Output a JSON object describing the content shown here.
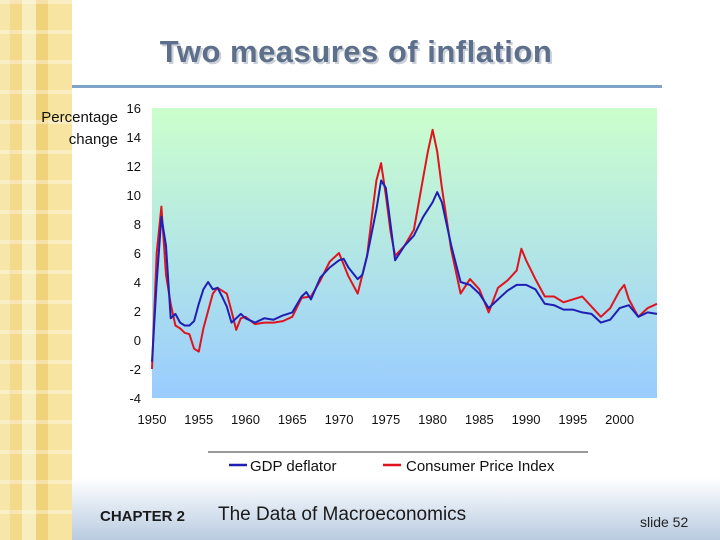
{
  "slide": {
    "title": "Two measures of inflation",
    "chapter": "CHAPTER 2",
    "subject": "The Data of Macroeconomics",
    "slide_number": "slide 52"
  },
  "colors": {
    "gdp_deflator": "#1f1fb4",
    "cpi": "#e0141e",
    "background_top": "#ccffcc",
    "background_bottom": "#99ccff",
    "title": "#5d6f8a",
    "accent_rule": "#7ea2c8"
  },
  "chart_data": {
    "type": "line",
    "title": "",
    "ylabel_lines": [
      "Percentage",
      "change"
    ],
    "xlabel": "",
    "xlim": [
      1950,
      2004
    ],
    "ylim": [
      -4,
      16
    ],
    "x_ticks": [
      1950,
      1955,
      1960,
      1965,
      1970,
      1975,
      1980,
      1985,
      1990,
      1995,
      2000
    ],
    "x_tick_labels": [
      "1950",
      "1955",
      "1960",
      "1965",
      "1970",
      "1975",
      "1980",
      "1985",
      "1990",
      "1995",
      "2000"
    ],
    "y_ticks": [
      -4,
      -2,
      0,
      2,
      4,
      6,
      8,
      10,
      12,
      14,
      16
    ],
    "y_tick_labels": [
      "-4",
      "-2",
      "0",
      "2",
      "4",
      "6",
      "8",
      "10",
      "12",
      "14",
      "16"
    ],
    "legend_position": "bottom",
    "grid": false,
    "series": [
      {
        "name": "GDP deflator",
        "color": "#1f1fb4",
        "x": [
          1950,
          1950.5,
          1951,
          1951.5,
          1952,
          1952.5,
          1953,
          1953.5,
          1954,
          1954.5,
          1955,
          1955.5,
          1956,
          1956.5,
          1957,
          1957.5,
          1958,
          1958.5,
          1959,
          1959.5,
          1960,
          1961,
          1962,
          1963,
          1964,
          1965,
          1966,
          1966.5,
          1967,
          1968,
          1969,
          1970,
          1970.5,
          1971,
          1972,
          1972.5,
          1973,
          1974,
          1974.5,
          1975,
          1975.5,
          1976,
          1977,
          1978,
          1979,
          1980,
          1980.5,
          1981,
          1982,
          1983,
          1984,
          1985,
          1986,
          1987,
          1988,
          1989,
          1990,
          1991,
          1992,
          1993,
          1994,
          1995,
          1996,
          1997,
          1998,
          1999,
          2000,
          2001,
          2002,
          2003,
          2004
        ],
        "values": [
          -1.5,
          4.0,
          8.5,
          6.5,
          1.5,
          1.8,
          1.2,
          1.0,
          1.0,
          1.3,
          2.5,
          3.5,
          4.0,
          3.5,
          3.6,
          3.0,
          2.3,
          1.2,
          1.5,
          1.8,
          1.5,
          1.2,
          1.5,
          1.4,
          1.7,
          1.9,
          3.0,
          3.3,
          2.8,
          4.3,
          5.0,
          5.5,
          5.6,
          5.0,
          4.2,
          4.5,
          5.8,
          9.0,
          11.0,
          10.5,
          8.0,
          5.5,
          6.5,
          7.2,
          8.5,
          9.5,
          10.2,
          9.5,
          6.5,
          4.0,
          3.8,
          3.2,
          2.2,
          2.8,
          3.4,
          3.8,
          3.8,
          3.5,
          2.5,
          2.4,
          2.1,
          2.1,
          1.9,
          1.8,
          1.2,
          1.4,
          2.2,
          2.4,
          1.6,
          1.9,
          1.8
        ]
      },
      {
        "name": "Consumer Price Index",
        "color": "#e0141e",
        "x": [
          1950,
          1950.5,
          1951,
          1951.5,
          1952,
          1952.5,
          1953,
          1953.5,
          1954,
          1954.5,
          1955,
          1955.5,
          1956,
          1956.5,
          1957,
          1957.5,
          1958,
          1958.5,
          1959,
          1959.5,
          1960,
          1961,
          1962,
          1963,
          1964,
          1965,
          1966,
          1967,
          1968,
          1969,
          1970,
          1971,
          1972,
          1973,
          1973.5,
          1974,
          1974.5,
          1975,
          1975.5,
          1976,
          1977,
          1978,
          1979,
          1979.5,
          1980,
          1980.5,
          1981,
          1982,
          1983,
          1984,
          1985,
          1986,
          1987,
          1988,
          1989,
          1989.5,
          1990,
          1991,
          1992,
          1993,
          1994,
          1995,
          1996,
          1997,
          1998,
          1999,
          2000,
          2000.5,
          2001,
          2002,
          2003,
          2004
        ],
        "values": [
          -2.0,
          6.0,
          9.2,
          4.5,
          2.5,
          1.0,
          0.8,
          0.5,
          0.4,
          -0.6,
          -0.8,
          0.8,
          2.0,
          3.2,
          3.6,
          3.4,
          3.2,
          2.0,
          0.7,
          1.5,
          1.6,
          1.1,
          1.2,
          1.2,
          1.3,
          1.6,
          2.9,
          3.0,
          4.1,
          5.4,
          6.0,
          4.4,
          3.2,
          5.8,
          8.5,
          11.0,
          12.2,
          10.0,
          7.5,
          5.8,
          6.5,
          7.6,
          11.2,
          13.0,
          14.5,
          13.0,
          10.5,
          6.2,
          3.2,
          4.2,
          3.5,
          1.9,
          3.6,
          4.1,
          4.8,
          6.3,
          5.5,
          4.2,
          3.0,
          3.0,
          2.6,
          2.8,
          3.0,
          2.3,
          1.6,
          2.2,
          3.4,
          3.8,
          2.8,
          1.6,
          2.2,
          2.5
        ]
      }
    ]
  }
}
